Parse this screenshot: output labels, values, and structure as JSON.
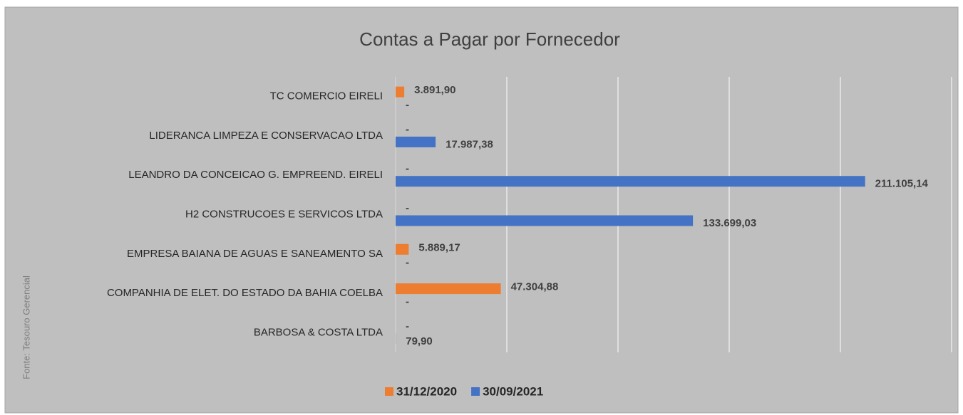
{
  "chart_data": {
    "type": "bar",
    "orientation": "horizontal",
    "title": "Contas a Pagar por Fornecedor",
    "source": "Fonte: Tesouro Gerencial",
    "categories": [
      "TC COMERCIO EIRELI",
      "LIDERANCA LIMPEZA E CONSERVACAO LTDA",
      "LEANDRO DA CONCEICAO G. EMPREEND. EIRELI",
      "H2 CONSTRUCOES E SERVICOS LTDA",
      "EMPRESA BAIANA DE AGUAS E SANEAMENTO SA",
      "COMPANHIA DE ELET. DO ESTADO DA BAHIA COELBA",
      "BARBOSA & COSTA LTDA"
    ],
    "series": [
      {
        "name": "31/12/2020",
        "color": "#ed7d31",
        "values": [
          3891.9,
          0,
          0,
          0,
          5889.17,
          47304.88,
          0
        ],
        "value_labels": [
          "3.891,90",
          "-",
          "-",
          "-",
          "5.889,17",
          "47.304,88",
          "-"
        ]
      },
      {
        "name": "30/09/2021",
        "color": "#4472c4",
        "values": [
          0,
          17987.38,
          211105.14,
          133699.03,
          0,
          0,
          79.9
        ],
        "value_labels": [
          "-",
          "17.987,38",
          "211.105,14",
          "133.699,03",
          "-",
          "-",
          "79,90"
        ]
      }
    ],
    "xlim": [
      0,
      250000
    ],
    "xticks": [
      0,
      50000,
      100000,
      150000,
      200000,
      250000
    ],
    "grid": true
  }
}
